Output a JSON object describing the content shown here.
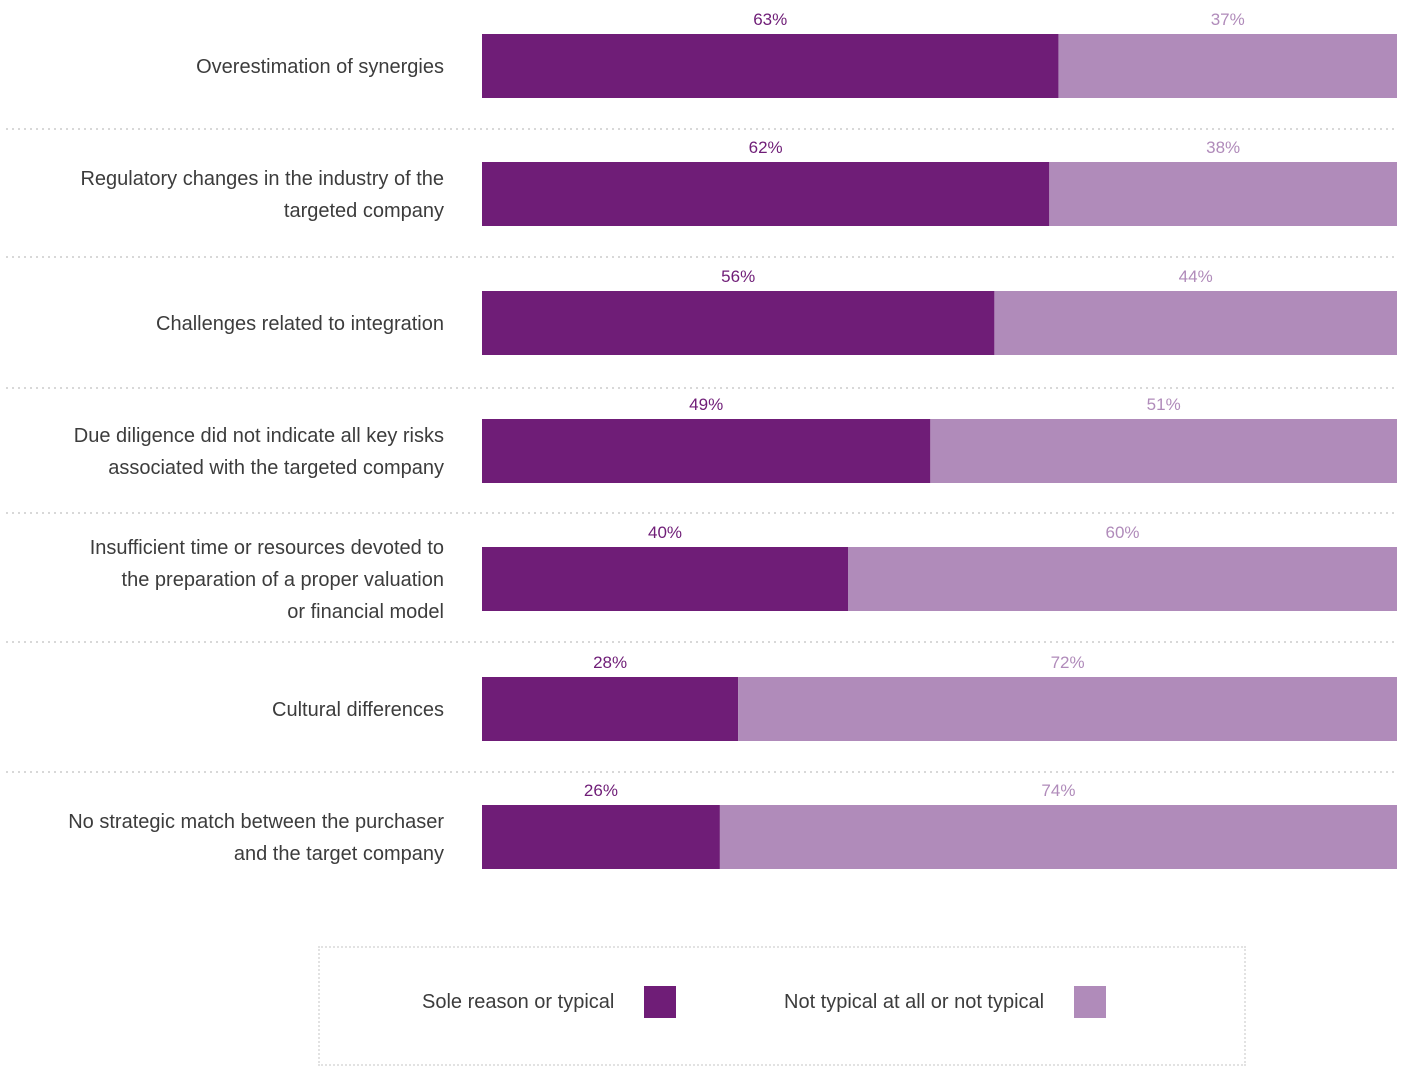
{
  "colors": {
    "sole": "#6f1d77",
    "not_typical": "#b08bba",
    "sole_label": "#6f1d77",
    "not_typical_label": "#b08bba",
    "divider": "#d8d8d8"
  },
  "chart_data": {
    "type": "bar",
    "orientation": "horizontal",
    "stacked": true,
    "percent_stacked": true,
    "title": "",
    "xlabel": "",
    "ylabel": "",
    "xlim": [
      0,
      100
    ],
    "value_suffix": "%",
    "categories": [
      "Overestimation of synergies",
      "Regulatory changes in the industry of the targeted company",
      "Challenges related to integration",
      "Due diligence did not indicate all key risks associated with the targeted company",
      "Insufficient time or resources devoted to the preparation of a proper valuation or financial model",
      "Cultural differences",
      "No strategic match between the purchaser and the target company"
    ],
    "category_lines": [
      [
        "Overestimation of synergies"
      ],
      [
        "Regulatory changes in the industry of the",
        "targeted company"
      ],
      [
        "Challenges related to integration"
      ],
      [
        "Due diligence did not indicate all key risks",
        "associated with the targeted company"
      ],
      [
        "Insufficient time or resources devoted to",
        "the preparation of a proper valuation",
        "or financial model"
      ],
      [
        "Cultural differences"
      ],
      [
        "No strategic match between the purchaser",
        "and the target company"
      ]
    ],
    "series": [
      {
        "name": "Sole reason or typical",
        "values": [
          63,
          62,
          56,
          49,
          40,
          28,
          26
        ]
      },
      {
        "name": "Not typical at all or not typical",
        "values": [
          37,
          38,
          44,
          51,
          60,
          72,
          74
        ]
      }
    ],
    "grid": false,
    "legend_position": "bottom-center"
  },
  "legend": {
    "sole_label": "Sole reason or typical",
    "not_typical_label": "Not typical at all or not typical"
  }
}
